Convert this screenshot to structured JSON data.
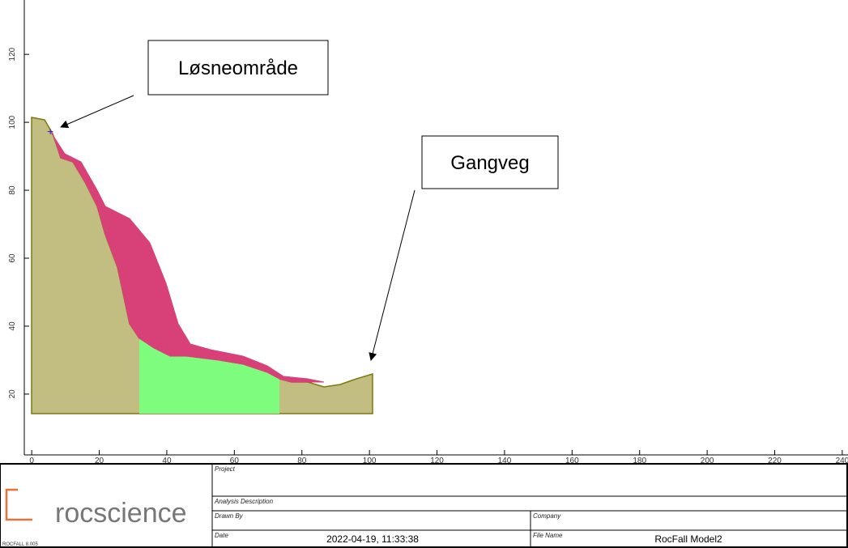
{
  "plot": {
    "xlim": [
      -2.2,
      241.7
    ],
    "xticks": [
      0,
      20,
      40,
      60,
      80,
      100,
      120,
      140,
      160,
      180,
      200,
      220,
      240
    ],
    "ylim": [
      2.1,
      136
    ],
    "yticks": [
      20,
      40,
      60,
      80,
      100,
      120
    ]
  },
  "annotations": [
    "Løsneområde",
    "Gangveg"
  ],
  "title_block": {
    "logo": "rocscience",
    "version": "ROCFALL 8.005",
    "project_label": "Project",
    "analysis_label": "Analysis Description",
    "drawn_by_label": "Drawn By",
    "company_label": "Company",
    "date_label": "Date",
    "date": "2022-04-19, 11:33:38",
    "file_name_label": "File Name",
    "file_name": "RocFall Model2"
  }
}
